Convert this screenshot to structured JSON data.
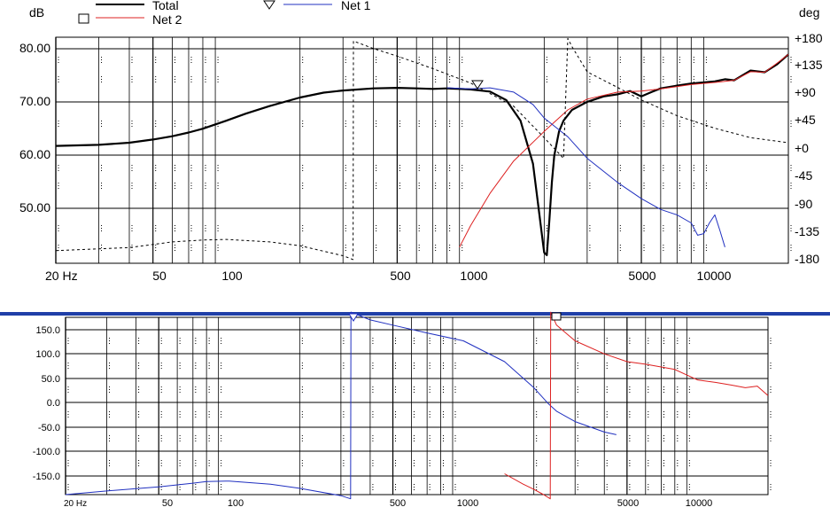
{
  "top_chart": {
    "y_unit_left": "dB",
    "y_unit_right": "deg",
    "y_ticks_left": [
      "80.00",
      "70.00",
      "60.00",
      "50.00"
    ],
    "y_ticks_right": [
      "+180",
      "+135",
      "+90",
      "+45",
      "+0",
      "-45",
      "-90",
      "-135",
      "-180"
    ],
    "x_ticks": [
      "20 Hz",
      "50",
      "100",
      "500",
      "1000",
      "5000",
      "10000"
    ],
    "legend": [
      {
        "label": "Total",
        "color": "#000000"
      },
      {
        "label": "Net 2",
        "color": "#dd2020"
      },
      {
        "label": "Net 1",
        "color": "#2030c0"
      }
    ]
  },
  "bottom_chart": {
    "y_ticks": [
      "150.0",
      "100.0",
      "50.0",
      "0.0",
      "-50.0",
      "-100.0",
      "-150.0"
    ],
    "x_ticks": [
      "20 Hz",
      "50",
      "100",
      "500",
      "1000",
      "5000",
      "10000"
    ]
  },
  "colors": {
    "total": "#000000",
    "net2": "#dd2020",
    "net1": "#2030c0",
    "divider": "#1f3fa8"
  },
  "chart_data": [
    {
      "type": "line",
      "x_scale": "log",
      "xlim": [
        20,
        20000
      ],
      "ylim": [
        40,
        82
      ],
      "y2lim": [
        -180,
        180
      ],
      "series": [
        {
          "name": "Total",
          "axis": "magnitude",
          "x": [
            20,
            30,
            40,
            50,
            60,
            70,
            80,
            100,
            120,
            150,
            200,
            250,
            300,
            400,
            500,
            600,
            700,
            800,
            900,
            1000,
            1200,
            1400,
            1600,
            1800,
            1900,
            2000,
            2050,
            2100,
            2150,
            2200,
            2300,
            2400,
            2600,
            3000,
            3500,
            4000,
            4500,
            5000,
            5500,
            6000,
            7000,
            8000,
            9000,
            10000,
            11000,
            12000,
            14000,
            16000,
            18000,
            20000
          ],
          "y": [
            61.8,
            62.0,
            62.4,
            63.0,
            63.6,
            64.3,
            65.0,
            66.5,
            67.8,
            69.2,
            70.8,
            71.7,
            72.1,
            72.5,
            72.6,
            72.5,
            72.4,
            72.5,
            72.4,
            72.3,
            71.9,
            70.3,
            66.5,
            58.5,
            50.0,
            42.0,
            41.5,
            48.0,
            55.0,
            60.0,
            64.5,
            66.5,
            68.5,
            70.0,
            71.0,
            71.4,
            72.0,
            71.0,
            71.8,
            72.5,
            73.0,
            73.4,
            73.6,
            73.8,
            74.2,
            74.0,
            75.8,
            75.5,
            77.0,
            78.8
          ]
        },
        {
          "name": "Net 2",
          "axis": "magnitude",
          "x": [
            900,
            1000,
            1200,
            1500,
            2000,
            2500,
            3000,
            4000,
            5000,
            6000,
            8000,
            10000,
            12000,
            14000,
            16000,
            18000,
            20000
          ],
          "y": [
            43.0,
            47.0,
            53.0,
            59.0,
            64.5,
            68.5,
            70.5,
            71.8,
            72.0,
            72.4,
            73.2,
            73.6,
            74.0,
            75.6,
            75.5,
            77.2,
            78.8
          ]
        },
        {
          "name": "Net 1",
          "axis": "magnitude",
          "x": [
            800,
            1000,
            1200,
            1500,
            1800,
            2000,
            2500,
            3000,
            4000,
            5000,
            6000,
            7000,
            8000,
            8500,
            9000,
            9500,
            10000,
            10500,
            11000
          ],
          "y": [
            72.6,
            72.4,
            72.6,
            71.8,
            69.5,
            67.0,
            63.5,
            59.5,
            55.0,
            52.0,
            50.0,
            49.0,
            47.5,
            45.2,
            45.5,
            47.5,
            49.0,
            46.0,
            43.0
          ]
        },
        {
          "name": "Phase",
          "axis": "phase",
          "style": "dashed",
          "x": [
            20,
            30,
            40,
            50,
            60,
            80,
            100,
            150,
            200,
            300,
            330,
            331,
            400,
            500,
            700,
            1000,
            1500,
            2000,
            2400,
            2500,
            2600,
            3000,
            4000,
            5000,
            7000,
            10000,
            14000,
            20000
          ],
          "y": [
            -160,
            -157,
            -155,
            -150,
            -146,
            -143,
            -142,
            -146,
            -152,
            -168,
            -174,
            174,
            162,
            150,
            130,
            107,
            70,
            20,
            -13,
            178,
            165,
            125,
            100,
            80,
            55,
            35,
            20,
            12
          ]
        }
      ]
    },
    {
      "type": "line",
      "x_scale": "log",
      "xlim": [
        20,
        20000
      ],
      "ylim": [
        -170,
        170
      ],
      "series": [
        {
          "x": [
            20,
            30,
            50,
            70,
            80,
            100,
            150,
            200,
            300,
            330,
            331,
            400,
            500,
            700,
            1000,
            1500,
            2000,
            2300,
            2500,
            3000,
            4000,
            4500
          ],
          "y": [
            -170,
            -163,
            -155,
            -148,
            -145,
            -144,
            -150,
            -158,
            -172,
            -178,
            180,
            165,
            155,
            140,
            125,
            85,
            35,
            5,
            -10,
            -30,
            -50,
            -55
          ]
        },
        {
          "x": [
            1500,
            1800,
            2000,
            2200,
            2350,
            2360,
            2500,
            3000,
            4000,
            5000,
            6000,
            8000,
            10000,
            12000,
            14000,
            16000,
            18000,
            20000
          ],
          "y": [
            -130,
            -150,
            -160,
            -170,
            -178,
            180,
            155,
            125,
            100,
            85,
            80,
            70,
            50,
            45,
            40,
            35,
            38,
            20
          ]
        }
      ]
    }
  ]
}
